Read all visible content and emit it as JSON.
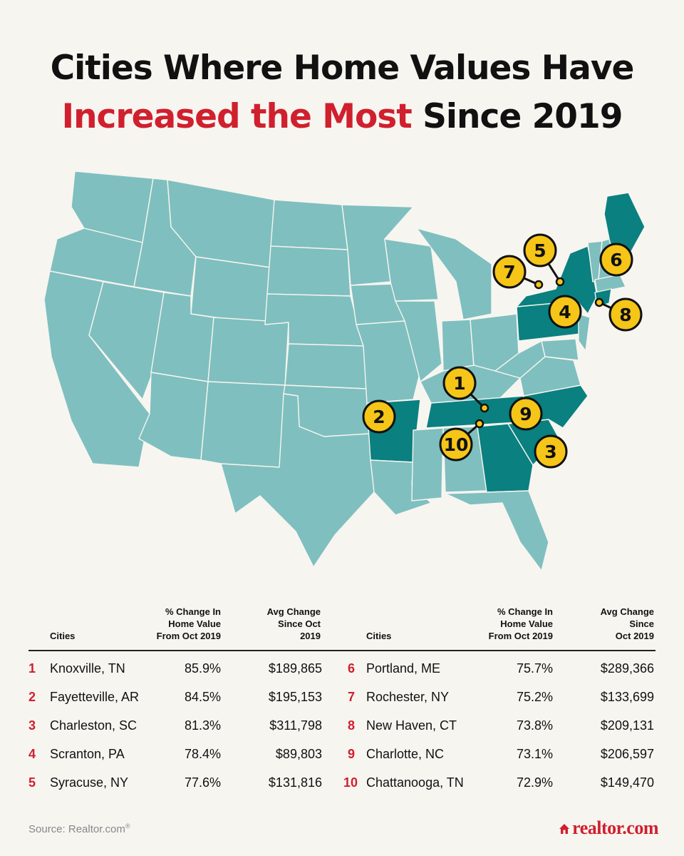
{
  "title": {
    "line1": "Cities Where Home Values Have",
    "line2_highlight": "Increased the Most",
    "line2_rest": " Since 2019"
  },
  "colors": {
    "accent": "#d0202e",
    "state": "#7fbfbf",
    "highlighted_state": "#0a8080",
    "marker": "#f5c518"
  },
  "map": {
    "markers": [
      {
        "label": "1",
        "city": "Knoxville, TN"
      },
      {
        "label": "2",
        "city": "Fayetteville, AR"
      },
      {
        "label": "3",
        "city": "Charleston, SC"
      },
      {
        "label": "4",
        "city": "Scranton, PA"
      },
      {
        "label": "5",
        "city": "Syracuse, NY"
      },
      {
        "label": "6",
        "city": "Portland, ME"
      },
      {
        "label": "7",
        "city": "Rochester, NY"
      },
      {
        "label": "8",
        "city": "New Haven, CT"
      },
      {
        "label": "9",
        "city": "Charlotte, NC"
      },
      {
        "label": "10",
        "city": "Chattanooga, TN"
      }
    ]
  },
  "table": {
    "headers": {
      "cities": "Cities",
      "pct_change": "% Change In\nHome Value\nFrom Oct 2019",
      "avg_change_left": "Avg Change\nSince Oct\n2019",
      "avg_change_right": "Avg Change\nSince\nOct 2019"
    },
    "rows": [
      {
        "rank": "1",
        "city": "Knoxville, TN",
        "pct": "85.9%",
        "avg": "$189,865"
      },
      {
        "rank": "2",
        "city": "Fayetteville, AR",
        "pct": "84.5%",
        "avg": "$195,153"
      },
      {
        "rank": "3",
        "city": "Charleston, SC",
        "pct": "81.3%",
        "avg": "$311,798"
      },
      {
        "rank": "4",
        "city": "Scranton, PA",
        "pct": "78.4%",
        "avg": "$89,803"
      },
      {
        "rank": "5",
        "city": "Syracuse, NY",
        "pct": "77.6%",
        "avg": "$131,816"
      },
      {
        "rank": "6",
        "city": "Portland, ME",
        "pct": "75.7%",
        "avg": "$289,366"
      },
      {
        "rank": "7",
        "city": "Rochester, NY",
        "pct": "75.2%",
        "avg": "$133,699"
      },
      {
        "rank": "8",
        "city": "New Haven, CT",
        "pct": "73.8%",
        "avg": "$209,131"
      },
      {
        "rank": "9",
        "city": "Charlotte, NC",
        "pct": "73.1%",
        "avg": "$206,597"
      },
      {
        "rank": "10",
        "city": "Chattanooga, TN",
        "pct": "72.9%",
        "avg": "$149,470"
      }
    ]
  },
  "footer": {
    "source": "Source: Realtor.com",
    "source_mark": "®",
    "logo": "realtor.com"
  }
}
